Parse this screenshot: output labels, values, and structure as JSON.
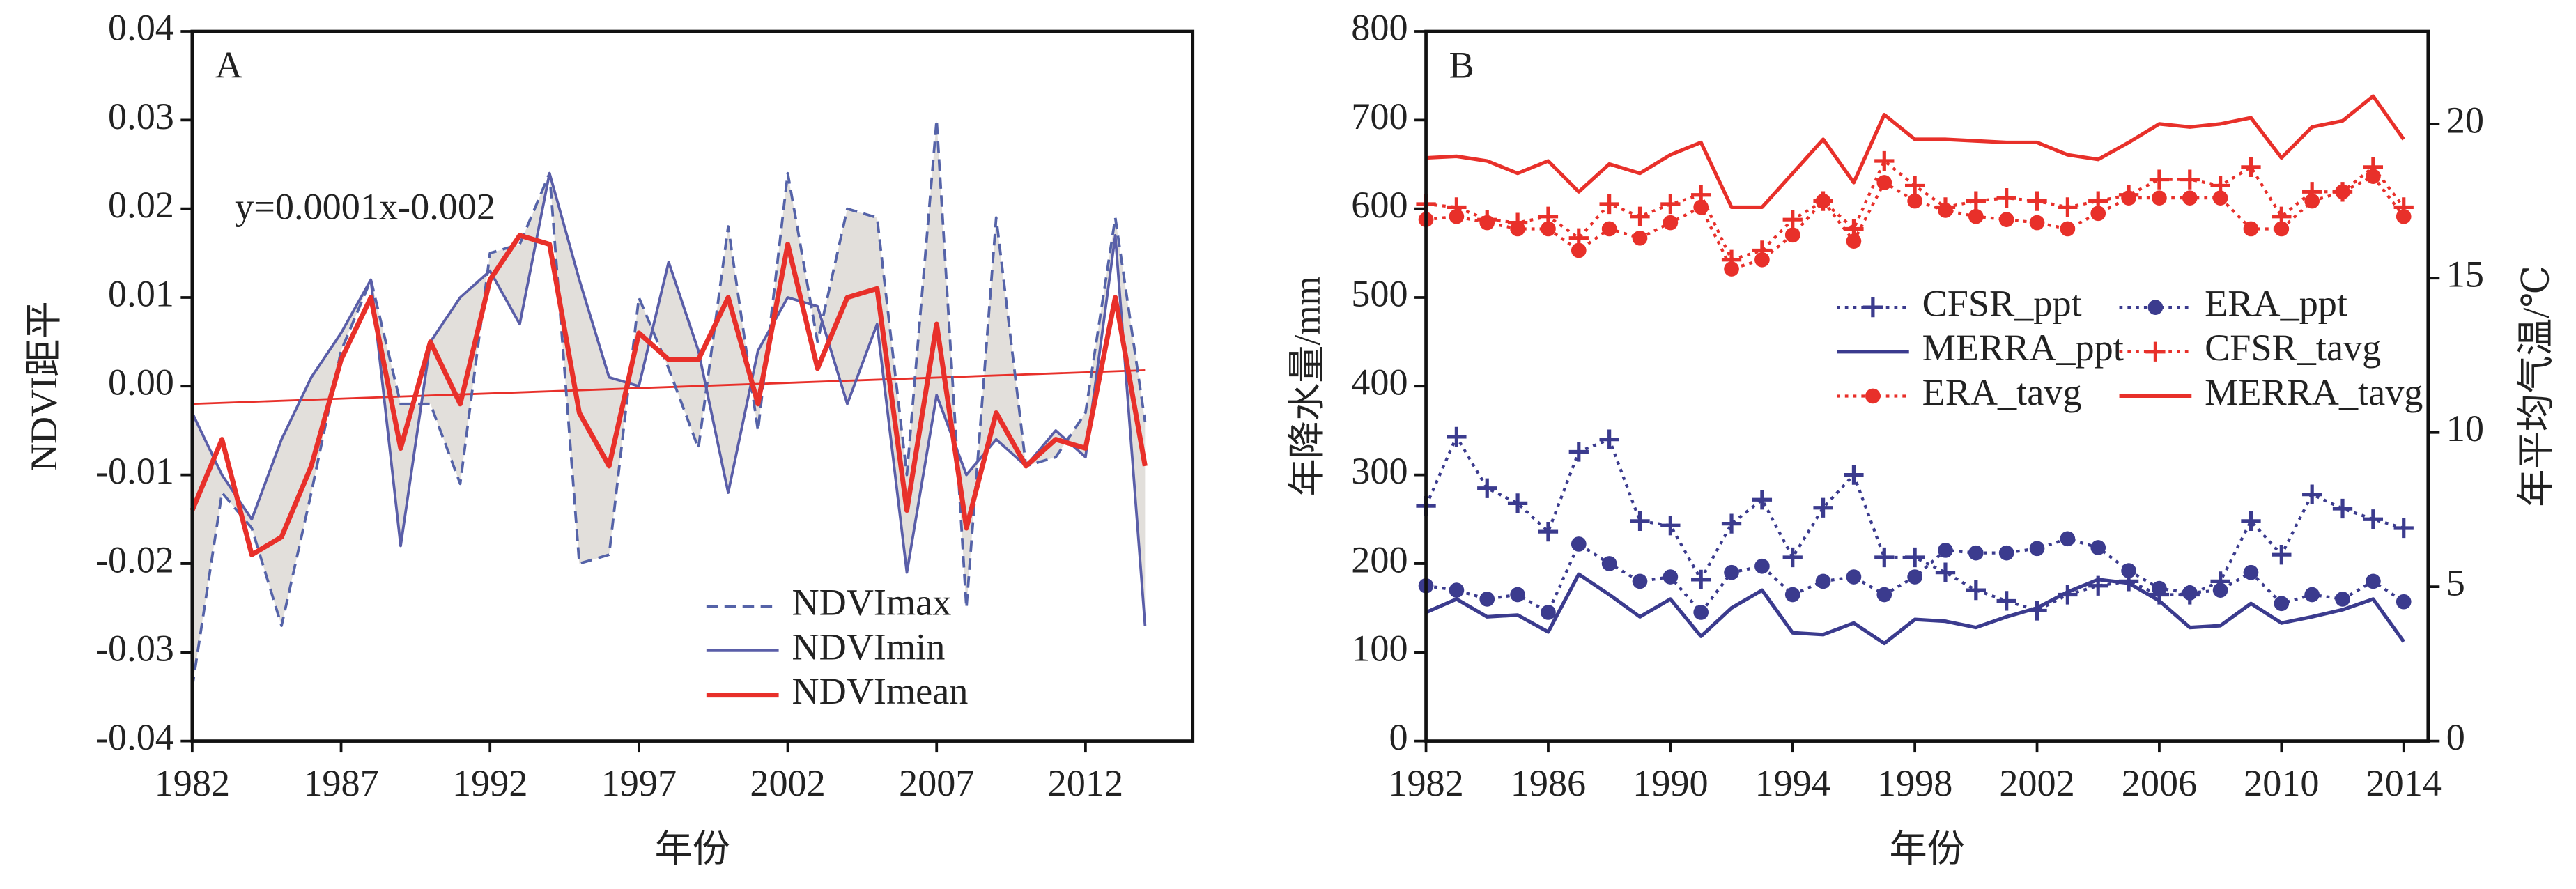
{
  "chart_data": [
    {
      "type": "line",
      "panel_label": "A",
      "xlabel": "年份",
      "ylabel": "NDVI距平",
      "annotation": "y=0.0001x-0.002",
      "x": [
        1982,
        1983,
        1984,
        1985,
        1986,
        1987,
        1988,
        1989,
        1990,
        1991,
        1992,
        1993,
        1994,
        1995,
        1996,
        1997,
        1998,
        1999,
        2000,
        2001,
        2002,
        2003,
        2004,
        2005,
        2006,
        2007,
        2008,
        2009,
        2010,
        2011,
        2012,
        2013,
        2014
      ],
      "xlim": [
        1982,
        2015.6
      ],
      "xticks": [
        1982,
        1987,
        1992,
        1997,
        2002,
        2007,
        2012
      ],
      "ylim": [
        -0.04,
        0.04
      ],
      "yticks": [
        -0.04,
        -0.03,
        -0.02,
        -0.01,
        {
          "value": 0,
          "label": "0.00"
        },
        0.01,
        0.02,
        0.03,
        0.04
      ],
      "legend": "lower center",
      "fill_between": [
        0,
        1
      ],
      "fill_color": "#e2dfdb",
      "series": [
        {
          "name": "NDVImax",
          "color": "#5563a8",
          "dash": "dashed",
          "linewidth": 1.6,
          "values": [
            -0.034,
            -0.012,
            -0.016,
            -0.027,
            -0.012,
            0.004,
            0.012,
            -0.002,
            -0.002,
            -0.011,
            0.015,
            0.016,
            0.024,
            -0.02,
            -0.019,
            0.01,
            0.002,
            -0.007,
            0.018,
            -0.005,
            0.024,
            0.005,
            0.02,
            0.019,
            -0.01,
            0.03,
            -0.025,
            0.019,
            -0.009,
            -0.008,
            -0.003,
            0.019,
            -0.004
          ]
        },
        {
          "name": "NDVImin",
          "color": "#5a5ea8",
          "dash": "solid",
          "linewidth": 1.6,
          "values": [
            -0.003,
            -0.01,
            -0.015,
            -0.006,
            0.001,
            0.006,
            0.012,
            -0.018,
            0.005,
            0.01,
            0.013,
            0.007,
            0.024,
            0.012,
            0.001,
            0.0,
            0.014,
            0.004,
            -0.012,
            0.004,
            0.01,
            0.009,
            -0.002,
            0.007,
            -0.021,
            -0.001,
            -0.01,
            -0.006,
            -0.009,
            -0.005,
            -0.008,
            0.017,
            -0.027
          ]
        },
        {
          "name": "NDVImean",
          "color": "#e8302a",
          "dash": "solid",
          "linewidth": 3,
          "values": [
            -0.014,
            -0.006,
            -0.019,
            -0.017,
            -0.009,
            0.003,
            0.01,
            -0.007,
            0.005,
            -0.002,
            0.012,
            0.017,
            0.016,
            -0.003,
            -0.009,
            0.006,
            0.003,
            0.003,
            0.01,
            -0.002,
            0.016,
            0.002,
            0.01,
            0.011,
            -0.014,
            0.007,
            -0.016,
            -0.003,
            -0.009,
            -0.006,
            -0.007,
            0.01,
            -0.009
          ]
        }
      ],
      "trendline": {
        "x": [
          1982,
          2014
        ],
        "values": [
          -0.002,
          0.0018
        ],
        "color": "#e8302a"
      }
    },
    {
      "type": "line",
      "panel_label": "B",
      "xlabel": "年份",
      "ylabel": "年降水量/mm",
      "y2label": "年平均气温/℃",
      "x": [
        1982,
        1983,
        1984,
        1985,
        1986,
        1987,
        1988,
        1989,
        1990,
        1991,
        1992,
        1993,
        1994,
        1995,
        1996,
        1997,
        1998,
        1999,
        2000,
        2001,
        2002,
        2003,
        2004,
        2005,
        2006,
        2007,
        2008,
        2009,
        2010,
        2011,
        2012,
        2013,
        2014
      ],
      "xlim": [
        1982,
        2014.8
      ],
      "xticks": [
        1982,
        1986,
        1990,
        1994,
        1998,
        2002,
        2006,
        2010,
        2014
      ],
      "ylim": [
        0,
        800
      ],
      "yticks": [
        0,
        100,
        200,
        300,
        400,
        500,
        600,
        700,
        800
      ],
      "y2lim": [
        0,
        23
      ],
      "y2ticks": [
        0,
        5,
        10,
        15,
        20
      ],
      "legend": "center",
      "series": [
        {
          "name": "CFSR_ppt",
          "color": "#3b3b8e",
          "dash": "dotted",
          "marker": "plus",
          "linewidth": 1.8,
          "values": [
            265,
            343,
            285,
            268,
            236,
            326,
            340,
            248,
            243,
            182,
            245,
            272,
            207,
            263,
            300,
            207,
            207,
            190,
            170,
            158,
            147,
            165,
            175,
            180,
            165,
            165,
            180,
            248,
            210,
            278,
            262,
            250,
            240
          ]
        },
        {
          "name": "ERA_ppt",
          "color": "#3b3b8e",
          "dash": "dotted",
          "marker": "circle",
          "linewidth": 1.8,
          "values": [
            175,
            170,
            160,
            165,
            145,
            222,
            200,
            180,
            185,
            145,
            190,
            197,
            165,
            180,
            185,
            165,
            185,
            215,
            212,
            212,
            217,
            228,
            218,
            192,
            172,
            167,
            170,
            190,
            155,
            165,
            160,
            180,
            157
          ]
        },
        {
          "name": "MERRA_ppt",
          "color": "#3b3b8e",
          "dash": "solid",
          "linewidth": 2.2,
          "values": [
            145,
            160,
            140,
            142,
            123,
            188,
            165,
            140,
            160,
            118,
            150,
            170,
            122,
            120,
            133,
            110,
            137,
            135,
            128,
            140,
            150,
            168,
            182,
            178,
            158,
            128,
            130,
            155,
            133,
            140,
            148,
            160,
            112
          ]
        },
        {
          "name": "CFSR_tavg",
          "color": "#e8302a",
          "dash": "dotted",
          "marker": "plus",
          "axis": "y2",
          "linewidth": 1.8,
          "values": [
            17.4,
            17.3,
            16.9,
            16.8,
            17.0,
            16.3,
            17.4,
            17.0,
            17.4,
            17.7,
            15.6,
            15.9,
            16.9,
            17.5,
            16.6,
            18.8,
            18.0,
            17.3,
            17.5,
            17.6,
            17.5,
            17.3,
            17.5,
            17.7,
            18.2,
            18.2,
            18.0,
            18.6,
            17.0,
            17.8,
            17.8,
            18.6,
            17.3
          ]
        },
        {
          "name": "ERA_tavg",
          "color": "#e8302a",
          "dash": "dotted",
          "marker": "circle",
          "axis": "y2",
          "linewidth": 1.8,
          "values": [
            16.9,
            17.0,
            16.8,
            16.6,
            16.6,
            15.9,
            16.6,
            16.3,
            16.8,
            17.3,
            15.3,
            15.6,
            16.4,
            17.5,
            16.2,
            18.1,
            17.5,
            17.2,
            17.0,
            16.9,
            16.8,
            16.6,
            17.1,
            17.6,
            17.6,
            17.6,
            17.6,
            16.6,
            16.6,
            17.5,
            17.8,
            18.3,
            17.0
          ]
        },
        {
          "name": "MERRA_tavg",
          "color": "#e8302a",
          "dash": "solid",
          "axis": "y2",
          "linewidth": 2.2,
          "values": [
            18.9,
            18.95,
            18.8,
            18.4,
            18.8,
            17.8,
            18.7,
            18.4,
            19.0,
            19.4,
            17.3,
            17.3,
            18.4,
            19.5,
            18.1,
            20.3,
            19.5,
            19.5,
            19.45,
            19.4,
            19.4,
            19.0,
            18.85,
            19.4,
            20.0,
            19.9,
            20.0,
            20.2,
            18.9,
            19.9,
            20.1,
            20.9,
            19.5
          ]
        }
      ]
    }
  ]
}
